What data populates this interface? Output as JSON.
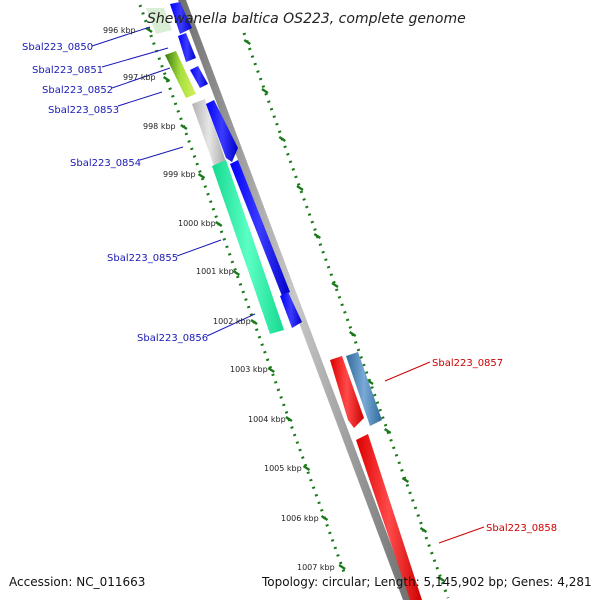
{
  "title": "Shewanella baltica OS223, complete genome",
  "footer": {
    "accession": "Accession: NC_011663",
    "topology": "Topology: circular; Length: 5,145,902 bp; Genes: 4,281"
  },
  "colors": {
    "backbone": "#8c8c8c",
    "tick": "#1a7a1a",
    "forward_label": "#1a1ab4",
    "reverse_label": "#cc0000",
    "blue_gene": "#0000ee",
    "teal_gene": "#1ee8a0",
    "gray_gene": "#c2c2c2",
    "green_gene": "#7cc63a",
    "steel_gene": "#4a82b4",
    "red_gene": "#ee0000"
  },
  "ticks": [
    {
      "label": "996 kbp",
      "kbp": 996
    },
    {
      "label": "997 kbp",
      "kbp": 997
    },
    {
      "label": "998 kbp",
      "kbp": 998
    },
    {
      "label": "999 kbp",
      "kbp": 999
    },
    {
      "label": "1000 kbp",
      "kbp": 1000
    },
    {
      "label": "1001 kbp",
      "kbp": 1001
    },
    {
      "label": "1002 kbp",
      "kbp": 1002
    },
    {
      "label": "1003 kbp",
      "kbp": 1003
    },
    {
      "label": "1004 kbp",
      "kbp": 1004
    },
    {
      "label": "1005 kbp",
      "kbp": 1005
    },
    {
      "label": "1006 kbp",
      "kbp": 1006
    },
    {
      "label": "1007 kbp",
      "kbp": 1007
    }
  ],
  "gene_labels": [
    {
      "name": "Sbal223_0850",
      "side": "left"
    },
    {
      "name": "Sbal223_0851",
      "side": "left"
    },
    {
      "name": "Sbal223_0852",
      "side": "left"
    },
    {
      "name": "Sbal223_0853",
      "side": "left"
    },
    {
      "name": "Sbal223_0854",
      "side": "left"
    },
    {
      "name": "Sbal223_0855",
      "side": "left"
    },
    {
      "name": "Sbal223_0856",
      "side": "left"
    },
    {
      "name": "Sbal223_0857",
      "side": "right"
    },
    {
      "name": "Sbal223_0858",
      "side": "right"
    }
  ]
}
